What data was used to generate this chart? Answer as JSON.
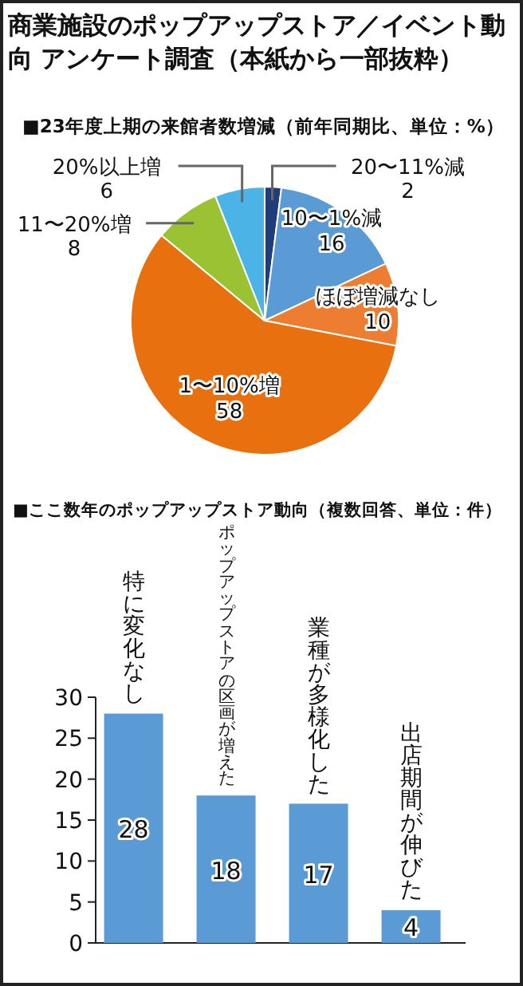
{
  "chart_data": [
    {
      "type": "pie",
      "title": "商業施設のポップアップストア／イベント動向 アンケート調査（本紙から一部抜粋）",
      "subtitle": "■23年度上期の来館者数増減（前年同期比、単位：%）",
      "categories": [
        "20〜11%減",
        "10〜1%減",
        "ほぼ増減なし",
        "1〜10%増",
        "11〜20%増",
        "20%以上増"
      ],
      "values": [
        2,
        16,
        10,
        58,
        8,
        6
      ],
      "colors": [
        "#1f3d78",
        "#5b9bd5",
        "#ed7d31",
        "#e8700e",
        "#9bc232",
        "#4cb3e6"
      ],
      "data_labels": true
    },
    {
      "type": "bar",
      "title": "■ここ数年のポップアップストア動向（複数回答、単位：件）",
      "categories": [
        "特に変化なし",
        "ポップアップストアの区画が増えた",
        "業種が多様化した",
        "出店期間が伸びた"
      ],
      "values": [
        28,
        18,
        17,
        4
      ],
      "color": "#5b9bd5",
      "ylim": [
        0,
        30
      ],
      "yticks": [
        0,
        5,
        10,
        15,
        20,
        25,
        30
      ],
      "data_labels": true
    }
  ]
}
